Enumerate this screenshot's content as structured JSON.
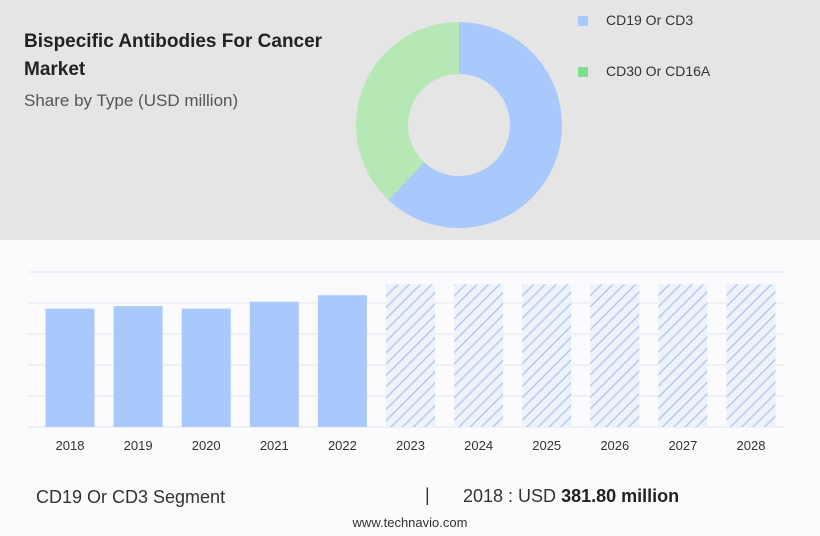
{
  "header": {
    "title": "Bispecific Antibodies For Cancer Market",
    "subtitle": "Share by Type (USD million)"
  },
  "legend": [
    {
      "label": "CD19 Or CD3",
      "color": "#a9c8fb"
    },
    {
      "label": "CD30 Or CD16A",
      "color": "#7ee08e"
    }
  ],
  "chart_data": [
    {
      "type": "pie",
      "donut": true,
      "categories": [
        "CD19 Or CD3",
        "CD30 Or CD16A"
      ],
      "values": [
        62,
        38
      ],
      "colors": [
        "#a9c8fb",
        "#b5e8b5"
      ]
    },
    {
      "type": "bar",
      "categories": [
        "2018",
        "2019",
        "2020",
        "2021",
        "2022",
        "2023",
        "2024",
        "2025",
        "2026",
        "2027",
        "2028"
      ],
      "values": [
        381.8,
        390,
        382,
        404,
        425,
        null,
        null,
        null,
        null,
        null,
        null
      ],
      "forecast_categories": [
        "2023",
        "2024",
        "2025",
        "2026",
        "2027",
        "2028"
      ],
      "ylim": [
        0,
        500
      ],
      "grid": true,
      "colors": {
        "bar": "#a9c8fb",
        "forecast_hatch": "#b7c9f0"
      }
    }
  ],
  "summary": {
    "segment": "CD19 Or CD3 Segment",
    "separator": "|",
    "value_prefix": "2018 : USD",
    "value": "381.80 million"
  },
  "footer": {
    "source": "www.technavio.com"
  }
}
